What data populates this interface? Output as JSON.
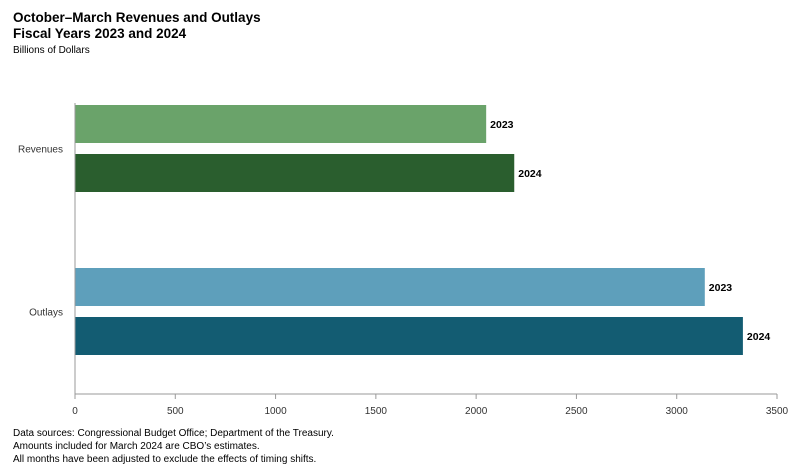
{
  "chart_data": {
    "type": "bar",
    "orientation": "horizontal",
    "title": "October–March Revenues and Outlays",
    "subtitle": "Fiscal Years 2023 and 2024",
    "units_label": "Billions of Dollars",
    "categories": [
      "Revenues",
      "Outlays"
    ],
    "series": [
      {
        "name": "2023",
        "colors": [
          "#6aa36a",
          "#5e9fbb"
        ],
        "values": [
          2050,
          3140
        ]
      },
      {
        "name": "2024",
        "colors": [
          "#2a5e2e",
          "#135c72"
        ],
        "values": [
          2190,
          3330
        ]
      }
    ],
    "xlim": [
      0,
      3500
    ],
    "xticks": [
      "0",
      "500",
      "1000",
      "1500",
      "2000",
      "2500",
      "3000",
      "3500"
    ],
    "grid": false,
    "legend": "none; series names shown as bar-end labels"
  },
  "notes": [
    "Data sources: Congressional Budget Office; Department of the Treasury.",
    "Amounts included for March 2024 are CBO’s estimates.",
    "All months have been adjusted to exclude the effects of timing shifts."
  ]
}
